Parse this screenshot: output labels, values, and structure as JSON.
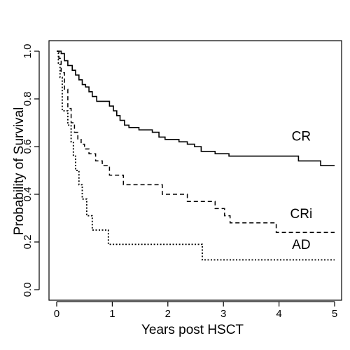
{
  "chart_data": {
    "type": "line",
    "title": "",
    "xlabel": "Years post HSCT",
    "ylabel": "Probability of Survival",
    "xlim": [
      0,
      5
    ],
    "ylim": [
      0,
      1
    ],
    "x_ticks": [
      "0",
      "1",
      "2",
      "3",
      "4",
      "5"
    ],
    "y_ticks": [
      "0.0",
      "0.2",
      "0.4",
      "0.6",
      "0.8",
      "1.0"
    ],
    "step": true,
    "grid": false,
    "legend": "inline labels at right",
    "series": [
      {
        "name": "CR",
        "line_style": "solid",
        "x": [
          0,
          0.08,
          0.14,
          0.2,
          0.28,
          0.34,
          0.4,
          0.46,
          0.52,
          0.58,
          0.64,
          0.72,
          0.95,
          1.02,
          1.08,
          1.14,
          1.22,
          1.3,
          1.48,
          1.72,
          1.84,
          1.95,
          2.2,
          2.35,
          2.48,
          2.6,
          2.85,
          3.1,
          4.35,
          4.75,
          5.0
        ],
        "y": [
          1.0,
          0.99,
          0.96,
          0.94,
          0.92,
          0.9,
          0.88,
          0.86,
          0.85,
          0.83,
          0.81,
          0.79,
          0.77,
          0.75,
          0.73,
          0.71,
          0.69,
          0.68,
          0.67,
          0.66,
          0.64,
          0.63,
          0.62,
          0.61,
          0.6,
          0.58,
          0.57,
          0.56,
          0.54,
          0.52,
          0.52
        ]
      },
      {
        "name": "CRi",
        "line_style": "dashed",
        "x": [
          0,
          0.04,
          0.08,
          0.14,
          0.2,
          0.26,
          0.32,
          0.38,
          0.44,
          0.5,
          0.58,
          0.7,
          0.82,
          0.95,
          1.2,
          1.9,
          2.35,
          2.85,
          3.02,
          3.12,
          3.95,
          5.0
        ],
        "y": [
          1.0,
          0.97,
          0.91,
          0.84,
          0.76,
          0.7,
          0.66,
          0.63,
          0.61,
          0.59,
          0.57,
          0.54,
          0.52,
          0.48,
          0.44,
          0.4,
          0.37,
          0.34,
          0.31,
          0.28,
          0.24,
          0.24
        ]
      },
      {
        "name": "AD",
        "line_style": "dotted",
        "x": [
          0,
          0.03,
          0.06,
          0.1,
          0.2,
          0.26,
          0.3,
          0.34,
          0.4,
          0.46,
          0.54,
          0.64,
          0.93,
          1.3,
          2.62,
          5.0
        ],
        "y": [
          1.0,
          0.95,
          0.89,
          0.75,
          0.69,
          0.62,
          0.56,
          0.5,
          0.44,
          0.38,
          0.31,
          0.25,
          0.19,
          0.19,
          0.125,
          0.125
        ]
      }
    ]
  }
}
